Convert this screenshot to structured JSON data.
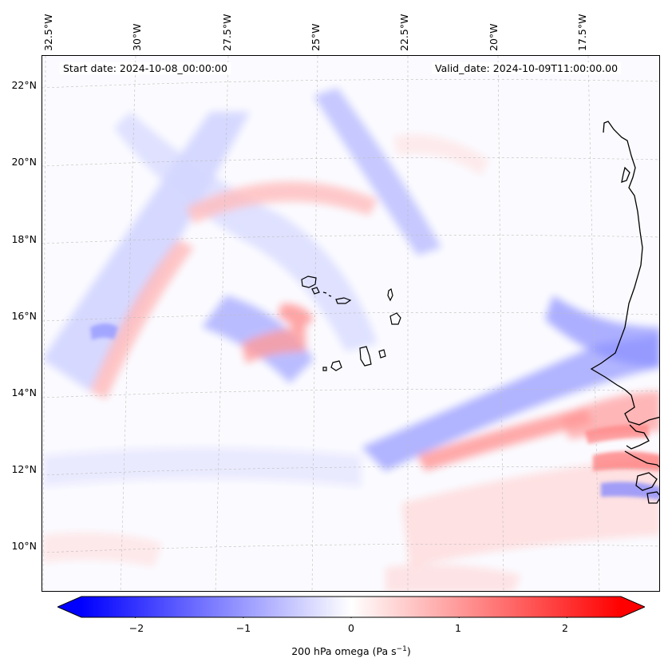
{
  "map": {
    "start_date": "Start date: 2024-10-08_00:00:00",
    "valid_date": "Valid_date: 2024-10-09T11:00:00.00",
    "lon_labels": [
      "32.5°W",
      "30°W",
      "27.5°W",
      "25°W",
      "22.5°W",
      "20°W",
      "17.5°W"
    ],
    "lat_labels": [
      "22°N",
      "20°N",
      "18°N",
      "16°N",
      "14°N",
      "12°N",
      "10°N"
    ],
    "gridlines": true
  },
  "colorbar": {
    "ticks": [
      "−2",
      "−1",
      "0",
      "1",
      "2"
    ],
    "tick_values": [
      -2,
      -1,
      0,
      1,
      2
    ],
    "range": [
      -2.5,
      2.5
    ],
    "label_text": "200 hPa omega (Pa s",
    "label_exp": "−1",
    "label_close": ")",
    "colormap": "bwr",
    "neg_color": "#0000ff",
    "pos_color": "#ff0000",
    "zero_color": "#ffffff"
  }
}
